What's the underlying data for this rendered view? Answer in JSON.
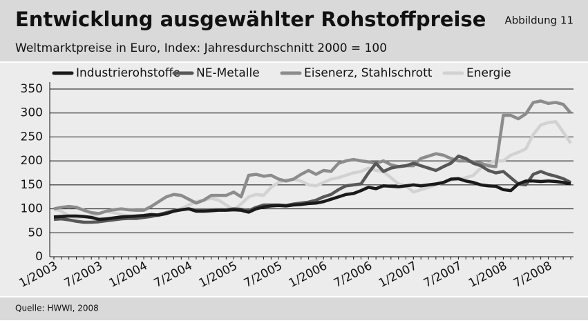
{
  "chart_data": {
    "type": "line",
    "title": "Entwicklung ausgewählter Rohstoffpreise",
    "subtitle": "Weltmarktpreise in Euro, Index: Jahresdurchschnitt 2000 = 100",
    "figure_label": "Abbildung 11",
    "source": "Quelle: HWWI, 2008",
    "categories": [
      "1/2003",
      null,
      null,
      null,
      null,
      null,
      "7/2003",
      null,
      null,
      null,
      null,
      null,
      "1/2004",
      null,
      null,
      null,
      null,
      null,
      "7/2004",
      null,
      null,
      null,
      null,
      null,
      "1/2005",
      null,
      null,
      null,
      null,
      null,
      "7/2005",
      null,
      null,
      null,
      null,
      null,
      "1/2006",
      null,
      null,
      null,
      null,
      null,
      "7/2006",
      null,
      null,
      null,
      null,
      null,
      "1/2007",
      null,
      null,
      null,
      null,
      null,
      "7/2007",
      null,
      null,
      null,
      null,
      null,
      "1/2008",
      null,
      null,
      null,
      null,
      null,
      "7/2008",
      null,
      null,
      null
    ],
    "series": [
      {
        "name": "Industrierohstoffe",
        "color": "#1a1a1a",
        "values": [
          83,
          84,
          85,
          85,
          84,
          82,
          78,
          79,
          81,
          83,
          84,
          85,
          86,
          88,
          87,
          90,
          95,
          98,
          100,
          95,
          95,
          96,
          97,
          97,
          98,
          97,
          93,
          100,
          104,
          106,
          107,
          106,
          108,
          109,
          111,
          112,
          115,
          120,
          125,
          130,
          132,
          138,
          145,
          142,
          148,
          147,
          146,
          148,
          150,
          148,
          150,
          152,
          155,
          162,
          163,
          158,
          155,
          150,
          148,
          147,
          140,
          138,
          152,
          158,
          158,
          157,
          158,
          157,
          155,
          152
        ]
      },
      {
        "name": "NE-Metalle",
        "color": "#575757",
        "values": [
          78,
          79,
          77,
          74,
          72,
          72,
          73,
          75,
          77,
          79,
          80,
          80,
          82,
          84,
          88,
          92,
          96,
          98,
          100,
          97,
          97,
          98,
          98,
          98,
          100,
          99,
          96,
          103,
          108,
          108,
          108,
          107,
          110,
          112,
          114,
          118,
          125,
          130,
          140,
          148,
          150,
          152,
          175,
          195,
          178,
          185,
          188,
          190,
          195,
          190,
          185,
          180,
          188,
          195,
          210,
          205,
          195,
          190,
          180,
          175,
          178,
          165,
          152,
          150,
          172,
          178,
          172,
          168,
          163,
          155
        ]
      },
      {
        "name": "Eisenerz, Stahlschrott",
        "color": "#8c8c8c",
        "values": [
          100,
          103,
          105,
          103,
          97,
          92,
          90,
          95,
          98,
          100,
          98,
          97,
          97,
          105,
          115,
          125,
          130,
          128,
          120,
          112,
          118,
          128,
          128,
          128,
          135,
          125,
          170,
          172,
          168,
          170,
          162,
          158,
          162,
          172,
          180,
          172,
          180,
          178,
          195,
          200,
          203,
          200,
          198,
          195,
          200,
          192,
          188,
          190,
          190,
          205,
          210,
          215,
          212,
          205,
          200,
          200,
          198,
          195,
          190,
          188,
          295,
          295,
          288,
          298,
          322,
          325,
          320,
          322,
          318,
          300
        ]
      },
      {
        "name": "Energie",
        "color": "#d2d2d2",
        "values": [
          100,
          95,
          85,
          82,
          82,
          85,
          90,
          95,
          92,
          88,
          85,
          82,
          82,
          85,
          85,
          90,
          95,
          100,
          108,
          115,
          118,
          122,
          118,
          108,
          98,
          110,
          125,
          130,
          128,
          145,
          155,
          160,
          162,
          158,
          150,
          148,
          155,
          162,
          165,
          170,
          175,
          178,
          185,
          180,
          178,
          165,
          152,
          148,
          135,
          140,
          145,
          150,
          155,
          160,
          162,
          165,
          170,
          185,
          195,
          200,
          200,
          212,
          218,
          225,
          255,
          275,
          280,
          282,
          260,
          237
        ]
      }
    ],
    "ylim": [
      0,
      350
    ],
    "yticks": [
      0,
      50,
      100,
      150,
      200,
      250,
      300,
      350
    ],
    "grid": true
  }
}
